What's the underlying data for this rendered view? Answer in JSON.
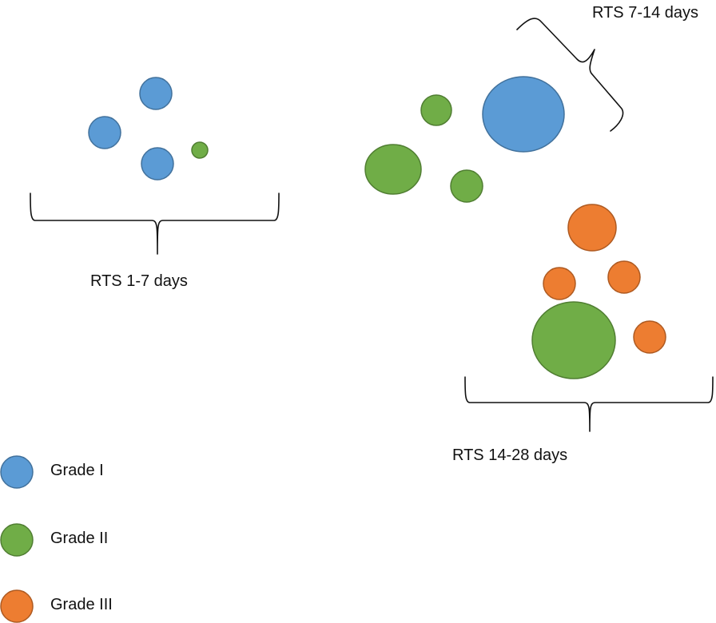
{
  "colors": {
    "grade_i_fill": "#5b9bd5",
    "grade_i_stroke": "#41719c",
    "grade_ii_fill": "#70ad47",
    "grade_ii_stroke": "#507e32",
    "grade_iii_fill": "#ed7d31",
    "grade_iii_stroke": "#ae5a21"
  },
  "groups": {
    "rts_1_7": {
      "label": "RTS 1-7 days"
    },
    "rts_7_14": {
      "label": "RTS 7-14 days"
    },
    "rts_14_28": {
      "label": "RTS 14-28 days"
    }
  },
  "legend": [
    {
      "label": "Grade I"
    },
    {
      "label": "Grade II"
    },
    {
      "label": "Grade III"
    }
  ]
}
